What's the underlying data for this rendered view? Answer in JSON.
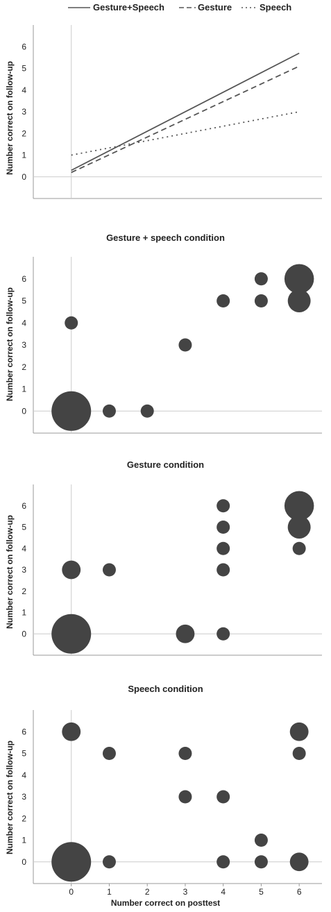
{
  "legend": {
    "items": [
      {
        "name": "Gesture+Speech",
        "style": "solid"
      },
      {
        "name": "Gesture",
        "style": "dashed"
      },
      {
        "name": "Speech",
        "style": "dotted"
      }
    ]
  },
  "x_axis_label": "Number correct on posttest",
  "y_axis_label": "Number correct on follow-up",
  "colors": {
    "line": "#555555",
    "bubble": "#444444",
    "grid": "#cccccc"
  },
  "chart_data": [
    {
      "type": "line",
      "title": "",
      "ylabel": "Number correct on follow-up",
      "ylim": [
        -1,
        7
      ],
      "xlim": [
        -1,
        6.6
      ],
      "yticks": [
        0,
        1,
        2,
        3,
        4,
        5,
        6
      ],
      "series": [
        {
          "name": "Gesture+Speech",
          "x": [
            0,
            6
          ],
          "values": [
            0.3,
            5.7
          ]
        },
        {
          "name": "Gesture",
          "x": [
            0,
            6
          ],
          "values": [
            0.2,
            5.1
          ]
        },
        {
          "name": "Speech",
          "x": [
            0,
            6
          ],
          "values": [
            1.0,
            3.0
          ]
        }
      ]
    },
    {
      "type": "scatter",
      "title": "Gesture + speech condition",
      "ylabel": "Number correct on follow-up",
      "ylim": [
        -1,
        7
      ],
      "xlim": [
        -1,
        6.6
      ],
      "yticks": [
        0,
        1,
        2,
        3,
        4,
        5,
        6
      ],
      "points": [
        {
          "x": 0,
          "y": 0,
          "size": 9
        },
        {
          "x": 0,
          "y": 4,
          "size": 1
        },
        {
          "x": 1,
          "y": 0,
          "size": 1
        },
        {
          "x": 2,
          "y": 0,
          "size": 1
        },
        {
          "x": 3,
          "y": 3,
          "size": 1
        },
        {
          "x": 4,
          "y": 5,
          "size": 1
        },
        {
          "x": 5,
          "y": 5,
          "size": 1
        },
        {
          "x": 5,
          "y": 6,
          "size": 1
        },
        {
          "x": 6,
          "y": 5,
          "size": 3
        },
        {
          "x": 6,
          "y": 6,
          "size": 5
        }
      ]
    },
    {
      "type": "scatter",
      "title": "Gesture condition",
      "ylabel": "Number correct on follow-up",
      "ylim": [
        -1,
        7
      ],
      "xlim": [
        -1,
        6.6
      ],
      "yticks": [
        0,
        1,
        2,
        3,
        4,
        5,
        6
      ],
      "points": [
        {
          "x": 0,
          "y": 0,
          "size": 9
        },
        {
          "x": 0,
          "y": 3,
          "size": 2
        },
        {
          "x": 1,
          "y": 3,
          "size": 1
        },
        {
          "x": 3,
          "y": 0,
          "size": 2
        },
        {
          "x": 4,
          "y": 0,
          "size": 1
        },
        {
          "x": 4,
          "y": 3,
          "size": 1
        },
        {
          "x": 4,
          "y": 4,
          "size": 1
        },
        {
          "x": 4,
          "y": 5,
          "size": 1
        },
        {
          "x": 4,
          "y": 6,
          "size": 1
        },
        {
          "x": 6,
          "y": 4,
          "size": 1
        },
        {
          "x": 6,
          "y": 5,
          "size": 3
        },
        {
          "x": 6,
          "y": 6,
          "size": 5
        }
      ]
    },
    {
      "type": "scatter",
      "title": "Speech condition",
      "ylabel": "Number correct on follow-up",
      "xlabel": "Number correct on posttest",
      "ylim": [
        -1,
        7
      ],
      "xlim": [
        -1,
        6.6
      ],
      "yticks": [
        0,
        1,
        2,
        3,
        4,
        5,
        6
      ],
      "xticks": [
        0,
        1,
        2,
        3,
        4,
        5,
        6
      ],
      "points": [
        {
          "x": 0,
          "y": 0,
          "size": 9
        },
        {
          "x": 0,
          "y": 6,
          "size": 2
        },
        {
          "x": 1,
          "y": 0,
          "size": 1
        },
        {
          "x": 1,
          "y": 5,
          "size": 1
        },
        {
          "x": 3,
          "y": 3,
          "size": 1
        },
        {
          "x": 3,
          "y": 5,
          "size": 1
        },
        {
          "x": 4,
          "y": 0,
          "size": 1
        },
        {
          "x": 4,
          "y": 3,
          "size": 1
        },
        {
          "x": 5,
          "y": 0,
          "size": 1
        },
        {
          "x": 5,
          "y": 1,
          "size": 1
        },
        {
          "x": 6,
          "y": 0,
          "size": 2
        },
        {
          "x": 6,
          "y": 5,
          "size": 1
        },
        {
          "x": 6,
          "y": 6,
          "size": 2
        }
      ]
    }
  ]
}
